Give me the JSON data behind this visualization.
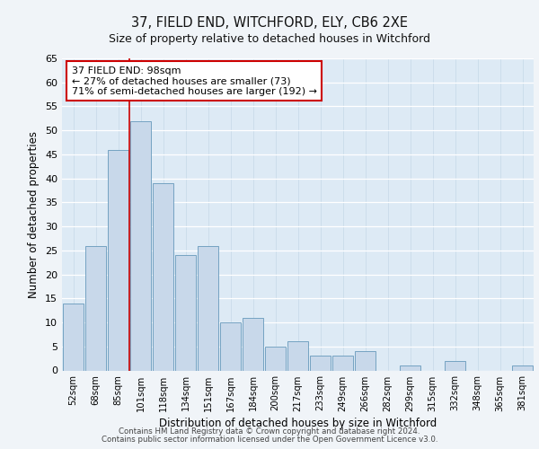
{
  "title1": "37, FIELD END, WITCHFORD, ELY, CB6 2XE",
  "title2": "Size of property relative to detached houses in Witchford",
  "xlabel": "Distribution of detached houses by size in Witchford",
  "ylabel": "Number of detached properties",
  "categories": [
    "52sqm",
    "68sqm",
    "85sqm",
    "101sqm",
    "118sqm",
    "134sqm",
    "151sqm",
    "167sqm",
    "184sqm",
    "200sqm",
    "217sqm",
    "233sqm",
    "249sqm",
    "266sqm",
    "282sqm",
    "299sqm",
    "315sqm",
    "332sqm",
    "348sqm",
    "365sqm",
    "381sqm"
  ],
  "values": [
    14,
    26,
    46,
    52,
    39,
    24,
    26,
    10,
    11,
    5,
    6,
    3,
    3,
    4,
    0,
    1,
    0,
    2,
    0,
    0,
    1
  ],
  "bar_color": "#c8d8ea",
  "bar_edge_color": "#6699bb",
  "vline_index": 2.5,
  "vline_color": "#cc0000",
  "annotation_text": "37 FIELD END: 98sqm\n← 27% of detached houses are smaller (73)\n71% of semi-detached houses are larger (192) →",
  "annotation_box_color": "#ffffff",
  "annotation_box_edge": "#cc0000",
  "ylim": [
    0,
    65
  ],
  "yticks": [
    0,
    5,
    10,
    15,
    20,
    25,
    30,
    35,
    40,
    45,
    50,
    55,
    60,
    65
  ],
  "footer1": "Contains HM Land Registry data © Crown copyright and database right 2024.",
  "footer2": "Contains public sector information licensed under the Open Government Licence v3.0.",
  "fig_bg_color": "#f0f4f8",
  "plot_bg_color": "#ddeaf5"
}
